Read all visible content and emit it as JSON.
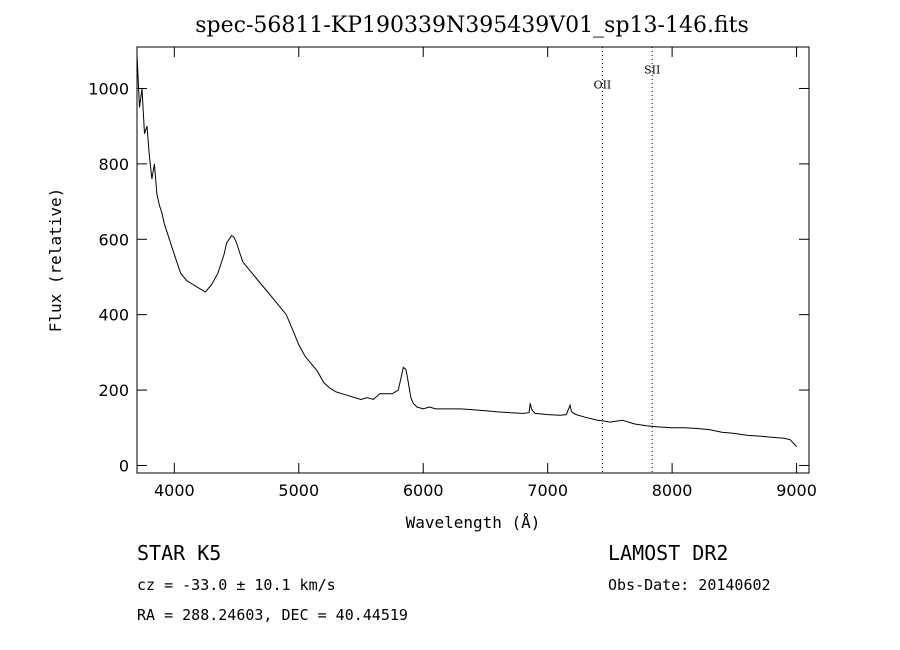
{
  "chart_data": {
    "type": "line",
    "title": "spec-56811-KP190339N395439V01_sp13-146.fits",
    "xlabel": "Wavelength (Å)",
    "ylabel": "Flux (relative)",
    "xlim": [
      3700,
      9100
    ],
    "ylim": [
      -20,
      1110
    ],
    "x_ticks": [
      4000,
      5000,
      6000,
      7000,
      8000,
      9000
    ],
    "y_ticks": [
      0,
      200,
      400,
      600,
      800,
      1000
    ],
    "grid": false,
    "series": [
      {
        "x": [
          3700,
          3720,
          3740,
          3760,
          3780,
          3800,
          3820,
          3840,
          3860,
          3880,
          3900,
          3920,
          3940,
          3960,
          3980,
          4000,
          4050,
          4100,
          4150,
          4200,
          4250,
          4300,
          4350,
          4400,
          4420,
          4440,
          4460,
          4480,
          4500,
          4520,
          4550,
          4600,
          4650,
          4700,
          4750,
          4800,
          4850,
          4900,
          4950,
          5000,
          5050,
          5100,
          5150,
          5200,
          5250,
          5300,
          5350,
          5400,
          5450,
          5500,
          5550,
          5600,
          5650,
          5700,
          5750,
          5800,
          5820,
          5840,
          5860,
          5870,
          5880,
          5900,
          5920,
          5950,
          6000,
          6050,
          6100,
          6200,
          6300,
          6400,
          6500,
          6600,
          6700,
          6800,
          6850,
          6860,
          6870,
          6880,
          6900,
          7000,
          7100,
          7150,
          7180,
          7190,
          7200,
          7230,
          7300,
          7400,
          7450,
          7500,
          7600,
          7650,
          7700,
          7800,
          7900,
          8000,
          8100,
          8200,
          8300,
          8400,
          8500,
          8600,
          8700,
          8800,
          8900,
          8950,
          9000
        ],
        "y": [
          1090,
          950,
          1000,
          880,
          900,
          820,
          760,
          800,
          720,
          690,
          670,
          640,
          620,
          600,
          580,
          560,
          510,
          490,
          480,
          470,
          460,
          480,
          510,
          560,
          590,
          600,
          610,
          605,
          590,
          570,
          540,
          520,
          500,
          480,
          460,
          440,
          420,
          400,
          360,
          320,
          290,
          270,
          250,
          220,
          205,
          195,
          190,
          185,
          180,
          175,
          180,
          175,
          190,
          190,
          190,
          200,
          230,
          260,
          255,
          240,
          220,
          180,
          165,
          155,
          150,
          155,
          150,
          150,
          150,
          148,
          145,
          142,
          140,
          138,
          140,
          165,
          150,
          145,
          138,
          135,
          133,
          135,
          160,
          145,
          140,
          135,
          128,
          120,
          118,
          115,
          120,
          115,
          110,
          105,
          102,
          100,
          100,
          98,
          95,
          88,
          85,
          80,
          78,
          75,
          72,
          68,
          50
        ]
      }
    ],
    "annotations": [
      {
        "label": "OII",
        "x": 7440,
        "y": 1000
      },
      {
        "label": "SII",
        "x": 7840,
        "y": 1040
      }
    ]
  },
  "info": {
    "line1_left": "STAR   K5",
    "line1_right": "LAMOST DR2",
    "line2_left": "cz = -33.0 ± 10.1 km/s",
    "line2_right": "Obs-Date: 20140602",
    "line3_left": "RA = 288.24603, DEC =  40.44519"
  }
}
